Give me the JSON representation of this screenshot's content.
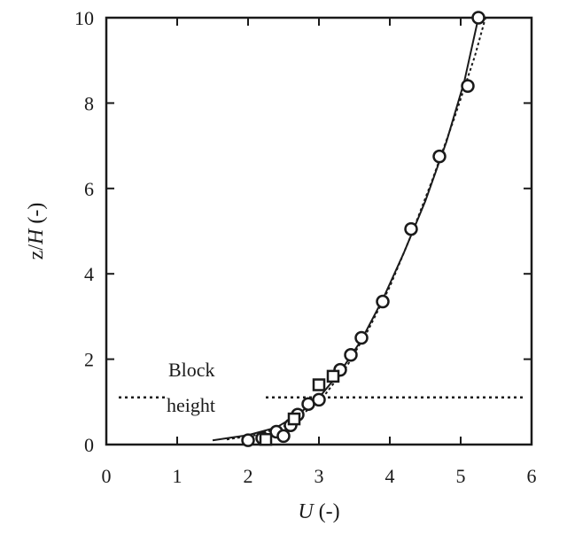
{
  "chart_data": {
    "type": "scatter",
    "title": "",
    "xlabel_italic": "U",
    "xlabel_rest": " (-)",
    "ylabel_prefix": "z/",
    "ylabel_italic": "H",
    "ylabel_suffix": " (-)",
    "xlim": [
      0,
      6
    ],
    "ylim": [
      0,
      10
    ],
    "x_ticks": [
      0,
      1,
      2,
      3,
      4,
      5,
      6
    ],
    "y_ticks": [
      0,
      2,
      4,
      6,
      8,
      10
    ],
    "grid": false,
    "annotation": {
      "line1": "Block",
      "line2": "height",
      "y": 1.0
    },
    "series": [
      {
        "kind": "measured",
        "marker": "circle",
        "points": [
          [
            2.0,
            0.1
          ],
          [
            2.2,
            0.15
          ],
          [
            2.4,
            0.3
          ],
          [
            2.5,
            0.2
          ],
          [
            2.6,
            0.45
          ],
          [
            2.7,
            0.7
          ],
          [
            2.85,
            0.95
          ],
          [
            3.0,
            1.05
          ],
          [
            3.3,
            1.75
          ],
          [
            3.45,
            2.1
          ],
          [
            3.6,
            2.5
          ],
          [
            3.9,
            3.35
          ],
          [
            4.3,
            5.05
          ],
          [
            4.7,
            6.75
          ],
          [
            5.1,
            8.4
          ],
          [
            5.25,
            10.0
          ]
        ]
      },
      {
        "kind": "measured",
        "marker": "square",
        "points": [
          [
            2.25,
            0.12
          ],
          [
            2.65,
            0.6
          ],
          [
            3.0,
            1.4
          ],
          [
            3.2,
            1.6
          ]
        ]
      },
      {
        "kind": "fit-solid",
        "points": [
          [
            1.5,
            0.1
          ],
          [
            2.0,
            0.22
          ],
          [
            2.4,
            0.4
          ],
          [
            2.7,
            0.7
          ],
          [
            3.0,
            1.1
          ],
          [
            3.3,
            1.7
          ],
          [
            3.6,
            2.45
          ],
          [
            3.9,
            3.4
          ],
          [
            4.2,
            4.5
          ],
          [
            4.5,
            5.7
          ],
          [
            4.8,
            7.1
          ],
          [
            5.05,
            8.5
          ],
          [
            5.25,
            10.0
          ]
        ]
      },
      {
        "kind": "fit-dotted",
        "points": [
          [
            1.7,
            0.12
          ],
          [
            2.1,
            0.22
          ],
          [
            2.5,
            0.42
          ],
          [
            2.8,
            0.75
          ],
          [
            3.1,
            1.2
          ],
          [
            3.4,
            1.85
          ],
          [
            3.7,
            2.7
          ],
          [
            4.0,
            3.7
          ],
          [
            4.3,
            4.9
          ],
          [
            4.6,
            6.2
          ],
          [
            4.9,
            7.6
          ],
          [
            5.2,
            9.1
          ],
          [
            5.35,
            10.0
          ]
        ]
      }
    ]
  }
}
